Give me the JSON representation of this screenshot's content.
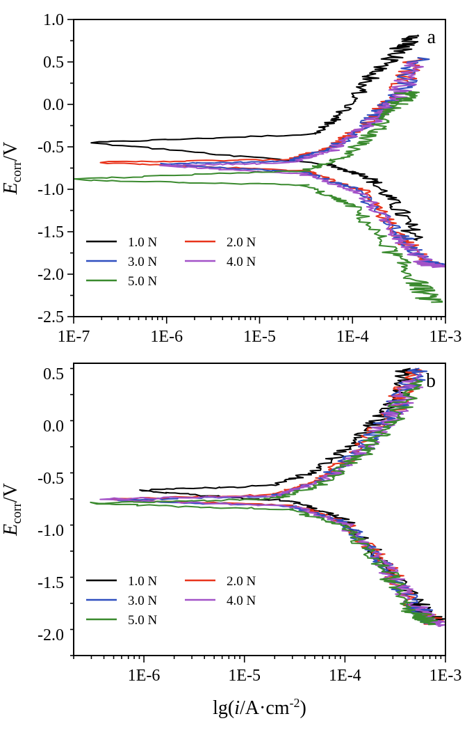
{
  "chart_data": [
    {
      "type": "line",
      "panel_label": "a",
      "xscale": "log",
      "xlim": [
        1e-07,
        0.001
      ],
      "ylim": [
        -2.5,
        1.0
      ],
      "x_ticks": [
        "1E-7",
        "1E-6",
        "1E-5",
        "1E-4",
        "1E-3"
      ],
      "y_ticks": [
        "1.0",
        "0.5",
        "0.0",
        "-0.5",
        "-1.0",
        "-1.5",
        "-2.0",
        "-2.5"
      ],
      "ylabel": {
        "main": "E",
        "sub": "corr",
        "rest": "/V"
      },
      "legend_placement": "bottom-left",
      "series": [
        {
          "name": "1.0 N",
          "color": "#000000",
          "ecorr": -0.45,
          "icorr_min": 1.5e-07,
          "anodic": [
            [
              4e-05,
              -0.35
            ],
            [
              8e-05,
              -0.1
            ],
            [
              0.00015,
              0.3
            ],
            [
              0.0003,
              0.6
            ],
            [
              0.0005,
              0.82
            ]
          ],
          "cathodic": [
            [
              5e-05,
              -0.7
            ],
            [
              0.00015,
              -0.85
            ],
            [
              0.0003,
              -1.2
            ],
            [
              0.0005,
              -1.6
            ]
          ]
        },
        {
          "name": "2.0 N",
          "color": "#e8341c",
          "ecorr": -0.68,
          "icorr_min": 2.1e-07,
          "anodic": [
            [
              2e-05,
              -0.65
            ],
            [
              6e-05,
              -0.5
            ],
            [
              0.00015,
              -0.2
            ],
            [
              0.0003,
              0.1
            ],
            [
              0.0005,
              0.55
            ]
          ],
          "cathodic": [
            [
              3e-05,
              -0.78
            ],
            [
              0.00012,
              -1.0
            ],
            [
              0.0003,
              -1.5
            ],
            [
              0.0006,
              -1.85
            ],
            [
              0.0008,
              -1.9
            ]
          ]
        },
        {
          "name": "3.0 N",
          "color": "#2f4fbf",
          "ecorr": -0.7,
          "icorr_min": 9e-07,
          "anodic": [
            [
              2e-05,
              -0.67
            ],
            [
              6e-05,
              -0.52
            ],
            [
              0.00015,
              -0.22
            ],
            [
              0.0003,
              0.1
            ],
            [
              0.0005,
              0.55
            ]
          ],
          "cathodic": [
            [
              3e-05,
              -0.8
            ],
            [
              0.00012,
              -1.02
            ],
            [
              0.0003,
              -1.5
            ],
            [
              0.0006,
              -1.85
            ],
            [
              0.0009,
              -1.9
            ]
          ]
        },
        {
          "name": "4.0 N",
          "color": "#a352c8",
          "ecorr": -0.72,
          "icorr_min": 9e-07,
          "anodic": [
            [
              2e-05,
              -0.69
            ],
            [
              6e-05,
              -0.54
            ],
            [
              0.00015,
              -0.24
            ],
            [
              0.0003,
              0.08
            ],
            [
              0.0005,
              0.5
            ]
          ],
          "cathodic": [
            [
              3e-05,
              -0.82
            ],
            [
              0.00012,
              -1.04
            ],
            [
              0.0003,
              -1.52
            ],
            [
              0.0006,
              -1.87
            ],
            [
              0.001,
              -1.92
            ]
          ]
        },
        {
          "name": "5.0 N",
          "color": "#3a8a2e",
          "ecorr": -0.88,
          "icorr_min": 1e-07,
          "anodic": [
            [
              3e-05,
              -0.78
            ],
            [
              8e-05,
              -0.62
            ],
            [
              0.00018,
              -0.3
            ],
            [
              0.0003,
              0.0
            ],
            [
              0.0004,
              0.15
            ]
          ],
          "cathodic": [
            [
              3e-05,
              -0.95
            ],
            [
              0.0001,
              -1.2
            ],
            [
              0.00025,
              -1.7
            ],
            [
              0.0005,
              -2.1
            ],
            [
              0.0007,
              -2.33
            ]
          ]
        }
      ]
    },
    {
      "type": "line",
      "panel_label": "b",
      "xscale": "log",
      "xlim": [
        2e-07,
        0.001
      ],
      "ylim": [
        -2.2,
        0.6
      ],
      "x_ticks": [
        "1E-6",
        "1E-5",
        "1E-4",
        "1E-3"
      ],
      "y_ticks": [
        "0.5",
        "0.0",
        "-0.5",
        "-1.0",
        "-1.5",
        "-2.0"
      ],
      "ylabel": {
        "main": "E",
        "sub": "corr",
        "rest": "/V"
      },
      "xlabel": {
        "pre": "lg(",
        "ital": "i",
        "mid": "/A·cm",
        "sup": "-2",
        "post": ")"
      },
      "legend_placement": "bottom-left",
      "series": [
        {
          "name": "1.0 N",
          "color": "#000000",
          "ecorr": -0.62,
          "icorr_min": 9e-07,
          "anodic": [
            [
              2e-05,
              -0.57
            ],
            [
              6e-05,
              -0.4
            ],
            [
              0.00015,
              -0.1
            ],
            [
              0.0003,
              0.25
            ],
            [
              0.00045,
              0.55
            ]
          ],
          "cathodic": [
            [
              3e-05,
              -0.72
            ],
            [
              0.0001,
              -0.9
            ],
            [
              0.00025,
              -1.3
            ],
            [
              0.0005,
              -1.7
            ],
            [
              0.0008,
              -1.88
            ]
          ]
        },
        {
          "name": "2.0 N",
          "color": "#e8341c",
          "ecorr": -0.7,
          "icorr_min": 5e-07,
          "anodic": [
            [
              2e-05,
              -0.66
            ],
            [
              6e-05,
              -0.5
            ],
            [
              0.00015,
              -0.2
            ],
            [
              0.0003,
              0.15
            ],
            [
              0.0005,
              0.55
            ]
          ],
          "cathodic": [
            [
              3e-05,
              -0.76
            ],
            [
              0.0001,
              -0.92
            ],
            [
              0.00025,
              -1.32
            ],
            [
              0.0005,
              -1.72
            ],
            [
              0.0008,
              -1.9
            ]
          ]
        },
        {
          "name": "3.0 N",
          "color": "#2f4fbf",
          "ecorr": -0.71,
          "icorr_min": 6e-07,
          "anodic": [
            [
              2e-05,
              -0.67
            ],
            [
              6e-05,
              -0.52
            ],
            [
              0.00015,
              -0.22
            ],
            [
              0.0003,
              0.13
            ],
            [
              0.00055,
              0.55
            ]
          ],
          "cathodic": [
            [
              3e-05,
              -0.77
            ],
            [
              0.0001,
              -0.93
            ],
            [
              0.00025,
              -1.33
            ],
            [
              0.0005,
              -1.73
            ],
            [
              0.0008,
              -1.9
            ]
          ]
        },
        {
          "name": "4.0 N",
          "color": "#a352c8",
          "ecorr": -0.7,
          "icorr_min": 4e-07,
          "anodic": [
            [
              2e-05,
              -0.67
            ],
            [
              6e-05,
              -0.53
            ],
            [
              0.00015,
              -0.24
            ],
            [
              0.0003,
              0.1
            ],
            [
              0.00055,
              0.5
            ]
          ],
          "cathodic": [
            [
              3e-05,
              -0.77
            ],
            [
              0.0001,
              -0.94
            ],
            [
              0.00025,
              -1.34
            ],
            [
              0.0005,
              -1.74
            ],
            [
              0.0009,
              -1.92
            ]
          ]
        },
        {
          "name": "5.0 N",
          "color": "#3a8a2e",
          "ecorr": -0.74,
          "icorr_min": 3e-07,
          "anodic": [
            [
              2e-05,
              -0.7
            ],
            [
              6e-05,
              -0.56
            ],
            [
              0.00015,
              -0.27
            ],
            [
              0.0003,
              0.05
            ],
            [
              0.0005,
              0.45
            ]
          ],
          "cathodic": [
            [
              3e-05,
              -0.8
            ],
            [
              0.0001,
              -0.97
            ],
            [
              0.00025,
              -1.38
            ],
            [
              0.0005,
              -1.78
            ],
            [
              0.0008,
              -1.9
            ]
          ]
        }
      ]
    }
  ]
}
